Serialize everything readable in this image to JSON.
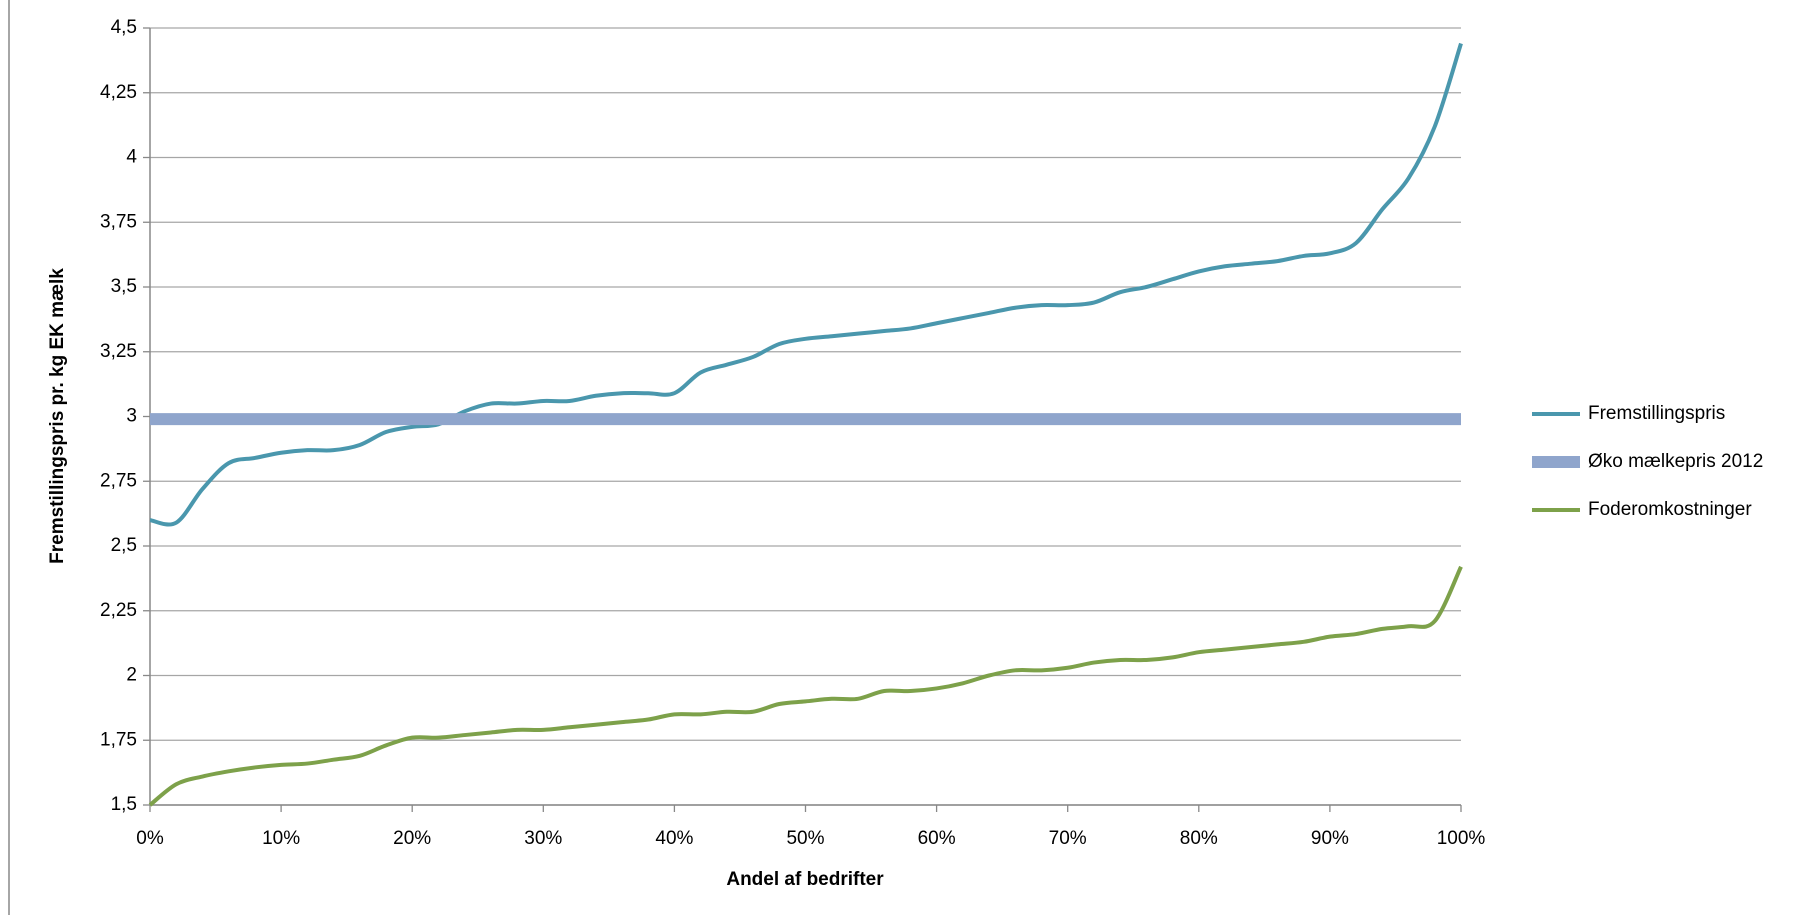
{
  "chart_data": {
    "type": "line",
    "x_label": "Andel af bedrifter",
    "y_label": "Fremstillingspris pr. kg EK mælk",
    "x": [
      0,
      2,
      4,
      6,
      8,
      10,
      12,
      14,
      16,
      18,
      20,
      22,
      24,
      26,
      28,
      30,
      32,
      34,
      36,
      38,
      40,
      42,
      44,
      46,
      48,
      50,
      52,
      54,
      56,
      58,
      60,
      62,
      64,
      66,
      68,
      70,
      72,
      74,
      76,
      78,
      80,
      82,
      84,
      86,
      88,
      90,
      92,
      94,
      96,
      98,
      100
    ],
    "series": [
      {
        "name": "Fremstillingspris",
        "color": "#4a97ad",
        "width": 4,
        "values": [
          2.6,
          2.59,
          2.72,
          2.82,
          2.84,
          2.86,
          2.87,
          2.87,
          2.89,
          2.94,
          2.96,
          2.97,
          3.02,
          3.05,
          3.05,
          3.06,
          3.06,
          3.08,
          3.09,
          3.09,
          3.09,
          3.17,
          3.2,
          3.23,
          3.28,
          3.3,
          3.31,
          3.32,
          3.33,
          3.34,
          3.36,
          3.38,
          3.4,
          3.42,
          3.43,
          3.43,
          3.44,
          3.48,
          3.5,
          3.53,
          3.56,
          3.58,
          3.59,
          3.6,
          3.62,
          3.63,
          3.67,
          3.8,
          3.92,
          4.12,
          4.44
        ]
      },
      {
        "name": "Øko mælkepris 2012",
        "color": "#8fa5cc",
        "width": 12,
        "x": [
          0,
          100
        ],
        "values": [
          2.99,
          2.99
        ]
      },
      {
        "name": "Foderomkostninger",
        "color": "#7da14a",
        "width": 4,
        "values": [
          1.5,
          1.58,
          1.61,
          1.63,
          1.645,
          1.655,
          1.66,
          1.675,
          1.69,
          1.73,
          1.76,
          1.76,
          1.77,
          1.78,
          1.79,
          1.79,
          1.8,
          1.81,
          1.82,
          1.83,
          1.85,
          1.85,
          1.86,
          1.86,
          1.89,
          1.9,
          1.91,
          1.91,
          1.94,
          1.94,
          1.95,
          1.97,
          2.0,
          2.02,
          2.02,
          2.03,
          2.05,
          2.06,
          2.06,
          2.07,
          2.09,
          2.1,
          2.11,
          2.12,
          2.13,
          2.15,
          2.16,
          2.18,
          2.19,
          2.21,
          2.42
        ]
      }
    ],
    "xlim": [
      0,
      100
    ],
    "xticks": [
      {
        "value": 0,
        "label": "0%"
      },
      {
        "value": 10,
        "label": "10%"
      },
      {
        "value": 20,
        "label": "20%"
      },
      {
        "value": 30,
        "label": "30%"
      },
      {
        "value": 40,
        "label": "40%"
      },
      {
        "value": 50,
        "label": "50%"
      },
      {
        "value": 60,
        "label": "60%"
      },
      {
        "value": 70,
        "label": "70%"
      },
      {
        "value": 80,
        "label": "80%"
      },
      {
        "value": 90,
        "label": "90%"
      },
      {
        "value": 100,
        "label": "100%"
      }
    ],
    "ylim": [
      1.5,
      4.5
    ],
    "yticks": [
      {
        "value": 1.5,
        "label": "1,5"
      },
      {
        "value": 1.75,
        "label": "1,75"
      },
      2,
      {
        "value": 2.25,
        "label": "2,25"
      },
      {
        "value": 2.5,
        "label": "2,5"
      },
      {
        "value": 2.75,
        "label": "2,75"
      },
      3,
      {
        "value": 3.25,
        "label": "3,25"
      },
      {
        "value": 3.5,
        "label": "3,5"
      },
      {
        "value": 3.75,
        "label": "3,75"
      },
      4,
      {
        "value": 4.25,
        "label": "4,25"
      },
      {
        "value": 4.5,
        "label": "4,5"
      }
    ],
    "grid": true,
    "legend": "right"
  }
}
